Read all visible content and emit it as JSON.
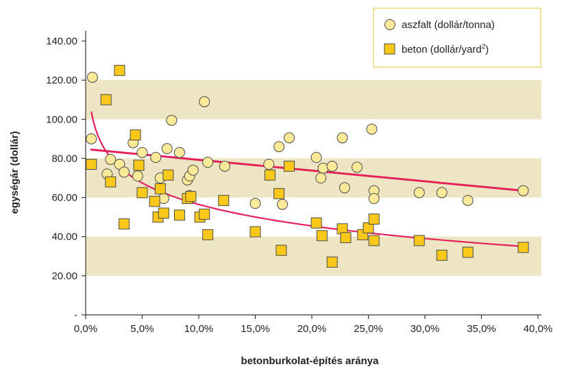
{
  "chart_data": {
    "type": "scatter",
    "xlabel": "betonburkolat-építés aránya",
    "ylabel": "egységár (dollár)",
    "xlim": [
      0,
      40
    ],
    "ylim": [
      0,
      140
    ],
    "x_ticks": [
      "0,0%",
      "5,0%",
      "10,0%",
      "15,0%",
      "20,0%",
      "25,0%",
      "30,0%",
      "35,0%",
      "40,0%"
    ],
    "y_ticks": [
      "-",
      "20.00",
      "40.00",
      "60.00",
      "80.00",
      "100.00",
      "120.00",
      "140.00"
    ],
    "bands": [
      [
        20,
        40
      ],
      [
        60,
        80
      ],
      [
        100,
        120
      ]
    ],
    "grid": false,
    "legend_position": "top-right",
    "colors": {
      "band": "#ede5c4",
      "asphalt_fill": "#fbe99a",
      "concrete_fill": "#f9c81a",
      "marker_stroke": "#4a4a4a",
      "trend": "#e3225a",
      "legend_border": "#f1e396"
    },
    "legend": {
      "asphalt_main": "aszfalt (dollár/tonna)",
      "concrete_main": "beton (dollár/yard",
      "concrete_sup": "2",
      "concrete_close": ")"
    },
    "series": [
      {
        "name": "aszfalt (dollár/tonna)",
        "marker": "circle",
        "points": [
          [
            0.6,
            121.5
          ],
          [
            0.5,
            90
          ],
          [
            1.9,
            72
          ],
          [
            2.2,
            79.5
          ],
          [
            3,
            77
          ],
          [
            3.4,
            73
          ],
          [
            4.2,
            88
          ],
          [
            4.6,
            71
          ],
          [
            5,
            83
          ],
          [
            6.2,
            80.5
          ],
          [
            6.6,
            70
          ],
          [
            6.9,
            59.5
          ],
          [
            7.2,
            85
          ],
          [
            7.6,
            99.5
          ],
          [
            8.3,
            83
          ],
          [
            9,
            69
          ],
          [
            9.2,
            71
          ],
          [
            9.5,
            74
          ],
          [
            9.2,
            61
          ],
          [
            10.5,
            109
          ],
          [
            10.8,
            78
          ],
          [
            12.3,
            76
          ],
          [
            15,
            57
          ],
          [
            16.2,
            77
          ],
          [
            17.1,
            86
          ],
          [
            17.4,
            56.5
          ],
          [
            18,
            90.5
          ],
          [
            20.4,
            80.5
          ],
          [
            20.8,
            70
          ],
          [
            21,
            75
          ],
          [
            21.8,
            76
          ],
          [
            22.7,
            90.5
          ],
          [
            22.9,
            65
          ],
          [
            24.0,
            75.5
          ],
          [
            25.3,
            95
          ],
          [
            25.5,
            63.5
          ],
          [
            25.5,
            59.5
          ],
          [
            29.5,
            62.5
          ],
          [
            31.5,
            62.5
          ],
          [
            33.8,
            58.5
          ],
          [
            38.7,
            63.5
          ]
        ]
      },
      {
        "name": "beton (dollár/yard2)",
        "marker": "square",
        "points": [
          [
            0.5,
            77
          ],
          [
            1.8,
            110
          ],
          [
            2.2,
            68
          ],
          [
            3.0,
            125
          ],
          [
            3.4,
            46.5
          ],
          [
            4.4,
            92
          ],
          [
            4.7,
            76.5
          ],
          [
            5.0,
            62.5
          ],
          [
            6.1,
            58
          ],
          [
            6.4,
            50
          ],
          [
            6.6,
            64.5
          ],
          [
            6.9,
            52
          ],
          [
            7.3,
            71.5
          ],
          [
            8.3,
            51
          ],
          [
            9.0,
            59.5
          ],
          [
            9.3,
            60.5
          ],
          [
            10.1,
            50
          ],
          [
            10.5,
            51.5
          ],
          [
            10.8,
            41
          ],
          [
            12.2,
            58.5
          ],
          [
            15.0,
            42.5
          ],
          [
            16.3,
            71.5
          ],
          [
            17.1,
            62
          ],
          [
            17.3,
            33
          ],
          [
            18.0,
            76
          ],
          [
            20.4,
            47
          ],
          [
            20.9,
            40.5
          ],
          [
            21.8,
            27
          ],
          [
            22.7,
            44
          ],
          [
            23.0,
            39.5
          ],
          [
            24.5,
            41
          ],
          [
            25.0,
            44.5
          ],
          [
            25.5,
            49
          ],
          [
            25.5,
            38
          ],
          [
            29.5,
            38
          ],
          [
            31.5,
            30.5
          ],
          [
            33.8,
            32
          ],
          [
            38.7,
            34.5
          ]
        ]
      }
    ],
    "trendlines": [
      {
        "series": "aszfalt (dollár/tonna)",
        "kind": "linear",
        "from": [
          0.5,
          84.5
        ],
        "to": [
          38.7,
          63.5
        ]
      },
      {
        "series": "beton (dollár/yard2)",
        "kind": "logarithmic",
        "y_at_0_5pct": 104,
        "y_at_38_7pct": 35
      }
    ]
  }
}
